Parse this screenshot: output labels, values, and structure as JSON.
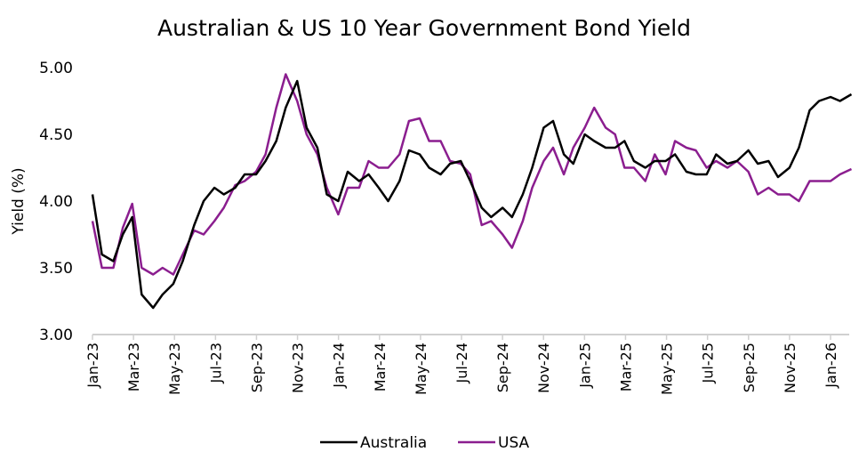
{
  "chart_data": {
    "type": "line",
    "title": "Australian & US 10 Year Government Bond Yield",
    "ylabel": "Yield (%)",
    "xlabel": "",
    "ylim": [
      3.0,
      5.0
    ],
    "yticks": [
      "3.00",
      "3.50",
      "4.00",
      "4.50",
      "5.00"
    ],
    "xticks": [
      "Jan-23",
      "Mar-23",
      "May-23",
      "Jul-23",
      "Sep-23",
      "Nov-23",
      "Jan-24",
      "Mar-24",
      "May-24",
      "Jul-24",
      "Sep-24",
      "Nov-24",
      "Jan-25",
      "Mar-25",
      "May-25",
      "Jul-25",
      "Sep-25",
      "Nov-25",
      "Jan-26"
    ],
    "grid": false,
    "legend_position": "bottom",
    "x": [
      "2023-01-01",
      "2023-01-15",
      "2023-02-01",
      "2023-02-15",
      "2023-03-01",
      "2023-03-15",
      "2023-04-01",
      "2023-04-15",
      "2023-05-01",
      "2023-05-15",
      "2023-06-01",
      "2023-06-15",
      "2023-07-01",
      "2023-07-15",
      "2023-08-01",
      "2023-08-15",
      "2023-09-01",
      "2023-09-15",
      "2023-10-01",
      "2023-10-15",
      "2023-11-01",
      "2023-11-15",
      "2023-12-01",
      "2023-12-15",
      "2024-01-01",
      "2024-01-15",
      "2024-02-01",
      "2024-02-15",
      "2024-03-01",
      "2024-03-15",
      "2024-04-01",
      "2024-04-15",
      "2024-05-01",
      "2024-05-15",
      "2024-06-01",
      "2024-06-15",
      "2024-07-01",
      "2024-07-15",
      "2024-08-01",
      "2024-08-15",
      "2024-09-01",
      "2024-09-15",
      "2024-10-01",
      "2024-10-15",
      "2024-11-01",
      "2024-11-15",
      "2024-12-01",
      "2024-12-15",
      "2025-01-01",
      "2025-01-15",
      "2025-02-01",
      "2025-02-15",
      "2025-03-01",
      "2025-03-15",
      "2025-04-01",
      "2025-04-15",
      "2025-05-01",
      "2025-05-15",
      "2025-06-01",
      "2025-06-15",
      "2025-07-01",
      "2025-07-15",
      "2025-08-01",
      "2025-08-15",
      "2025-09-01",
      "2025-09-15",
      "2025-10-01",
      "2025-10-15",
      "2025-11-01",
      "2025-11-15",
      "2025-12-01",
      "2025-12-15",
      "2026-01-01",
      "2026-01-15",
      "2026-02-01"
    ],
    "series": [
      {
        "name": "Australia",
        "color": "#000000",
        "values": [
          4.05,
          3.6,
          3.55,
          3.75,
          3.88,
          3.3,
          3.2,
          3.3,
          3.38,
          3.55,
          3.82,
          4.0,
          4.1,
          4.05,
          4.1,
          4.2,
          4.2,
          4.3,
          4.45,
          4.7,
          4.9,
          4.55,
          4.4,
          4.05,
          4.0,
          4.22,
          4.15,
          4.2,
          4.1,
          4.0,
          4.15,
          4.38,
          4.35,
          4.25,
          4.2,
          4.28,
          4.3,
          4.15,
          3.95,
          3.88,
          3.95,
          3.88,
          4.05,
          4.25,
          4.55,
          4.6,
          4.35,
          4.28,
          4.5,
          4.45,
          4.4,
          4.4,
          4.45,
          4.3,
          4.25,
          4.3,
          4.3,
          4.35,
          4.22,
          4.2,
          4.2,
          4.35,
          4.28,
          4.3,
          4.38,
          4.28,
          4.3,
          4.18,
          4.25,
          4.4,
          4.68,
          4.75,
          4.78,
          4.75,
          4.8
        ]
      },
      {
        "name": "USA",
        "color": "#8B1E8F",
        "values": [
          3.85,
          3.5,
          3.5,
          3.8,
          3.98,
          3.5,
          3.45,
          3.5,
          3.45,
          3.6,
          3.78,
          3.75,
          3.85,
          3.95,
          4.12,
          4.15,
          4.22,
          4.35,
          4.7,
          4.95,
          4.75,
          4.5,
          4.35,
          4.1,
          3.9,
          4.1,
          4.1,
          4.3,
          4.25,
          4.25,
          4.35,
          4.6,
          4.62,
          4.45,
          4.45,
          4.3,
          4.28,
          4.2,
          3.82,
          3.85,
          3.75,
          3.65,
          3.85,
          4.1,
          4.3,
          4.4,
          4.2,
          4.4,
          4.55,
          4.7,
          4.55,
          4.5,
          4.25,
          4.25,
          4.15,
          4.35,
          4.2,
          4.45,
          4.4,
          4.38,
          4.25,
          4.3,
          4.25,
          4.3,
          4.22,
          4.05,
          4.1,
          4.05,
          4.05,
          4.0,
          4.15,
          4.15,
          4.15,
          4.2,
          4.24
        ]
      }
    ]
  }
}
